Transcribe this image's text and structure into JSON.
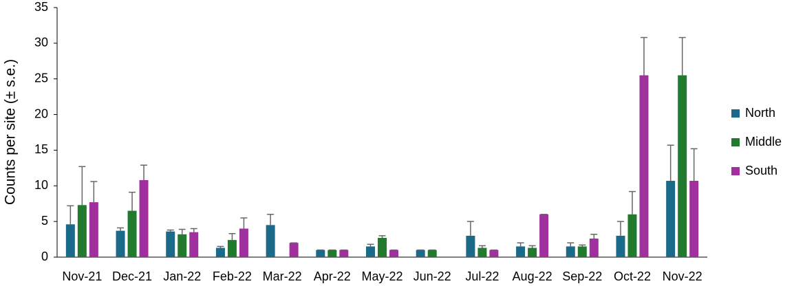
{
  "chart_data": {
    "type": "bar",
    "y_label": "Counts per site (± s.e.)",
    "categories": [
      "Nov-21",
      "Dec-21",
      "Jan-22",
      "Feb-22",
      "Mar-22",
      "Apr-22",
      "May-22",
      "Jun-22",
      "Jul-22",
      "Aug-22",
      "Sep-22",
      "Oct-22",
      "Nov-22"
    ],
    "series": [
      {
        "name": "North",
        "color": "#1c6a8a",
        "values": [
          4.6,
          3.7,
          3.6,
          1.3,
          4.5,
          1,
          1.5,
          1,
          3.0,
          1.5,
          1.5,
          3.0,
          10.7
        ],
        "errors": [
          2.6,
          0.4,
          0.2,
          0.2,
          1.5,
          0,
          0.3,
          0,
          2.0,
          0.5,
          0.5,
          2.0,
          5.0
        ]
      },
      {
        "name": "Middle",
        "color": "#217a2e",
        "values": [
          7.3,
          6.5,
          3.2,
          2.4,
          null,
          1,
          2.7,
          1,
          1.3,
          1.3,
          1.5,
          6.0,
          25.5
        ],
        "errors": [
          5.4,
          2.6,
          0.7,
          0.9,
          null,
          0,
          0.3,
          0,
          0.3,
          0.3,
          0.2,
          3.2,
          5.3
        ]
      },
      {
        "name": "South",
        "color": "#a0309e",
        "values": [
          7.7,
          10.8,
          3.5,
          4.0,
          2.0,
          1,
          1.0,
          null,
          1.0,
          6.0,
          2.6,
          25.5,
          10.7
        ],
        "errors": [
          2.9,
          2.1,
          0.5,
          1.5,
          0,
          0,
          0,
          null,
          0,
          0,
          0.6,
          5.3,
          4.5
        ]
      }
    ],
    "ylim": [
      0,
      35
    ],
    "yticks": [
      0,
      5,
      10,
      15,
      20,
      25,
      30,
      35
    ],
    "grid": false,
    "legend": "right"
  }
}
